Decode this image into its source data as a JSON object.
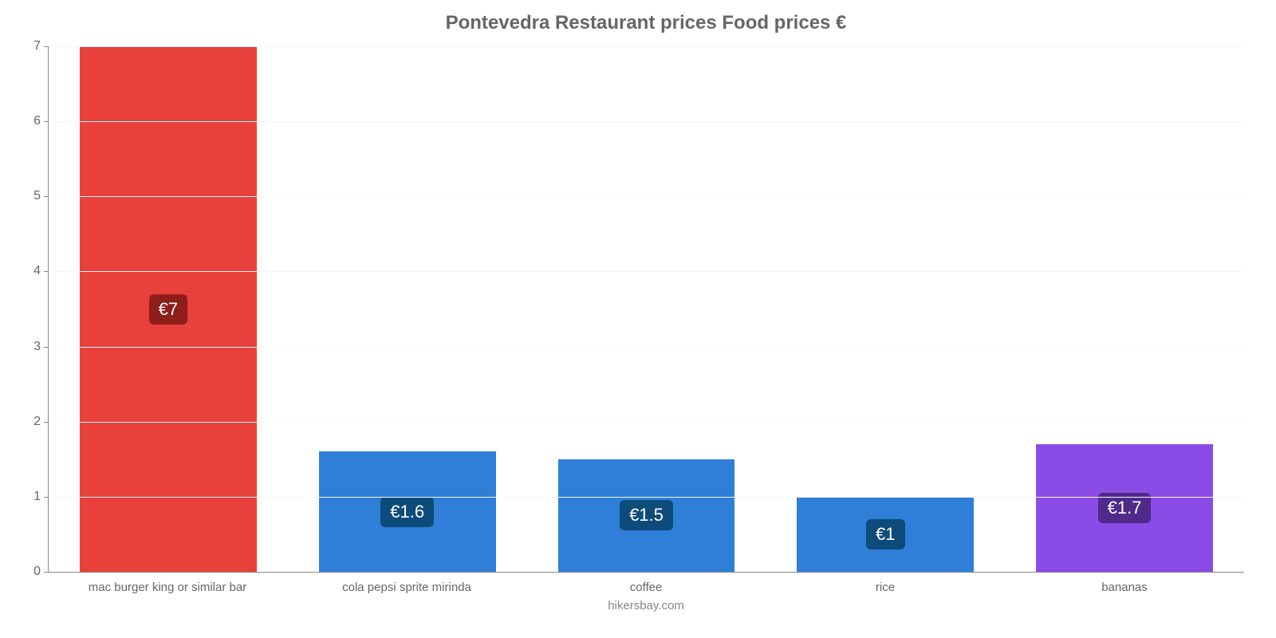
{
  "chart": {
    "type": "bar",
    "title": "Pontevedra Restaurant prices Food prices €",
    "title_color": "#666666",
    "title_fontsize": 24,
    "background_color": "#ffffff",
    "grid_color": "#f5f5f5",
    "axis_color": "#888888",
    "tick_label_color": "#666666",
    "tick_fontsize": 16,
    "x_label_fontsize": 15,
    "ylim": [
      0,
      7
    ],
    "ytick_step": 1,
    "bar_width": 0.74,
    "value_badge_fontsize": 22,
    "value_badge_text_color": "#ffffff",
    "categories": [
      "mac burger king or similar bar",
      "cola pepsi sprite mirinda",
      "coffee",
      "rice",
      "bananas"
    ],
    "values": [
      7,
      1.6,
      1.5,
      1,
      1.7
    ],
    "value_labels": [
      "€7",
      "€1.6",
      "€1.5",
      "€1",
      "€1.7"
    ],
    "bar_colors": [
      "#e8403a",
      "#2f7ed8",
      "#2f7ed8",
      "#2f7ed8",
      "#8a4be6"
    ],
    "badge_colors": [
      "#8f1e1a",
      "#0d4c7a",
      "#0d4c7a",
      "#0d4c7a",
      "#4f2a8a"
    ],
    "source": "hikersbay.com",
    "source_color": "#888888"
  }
}
